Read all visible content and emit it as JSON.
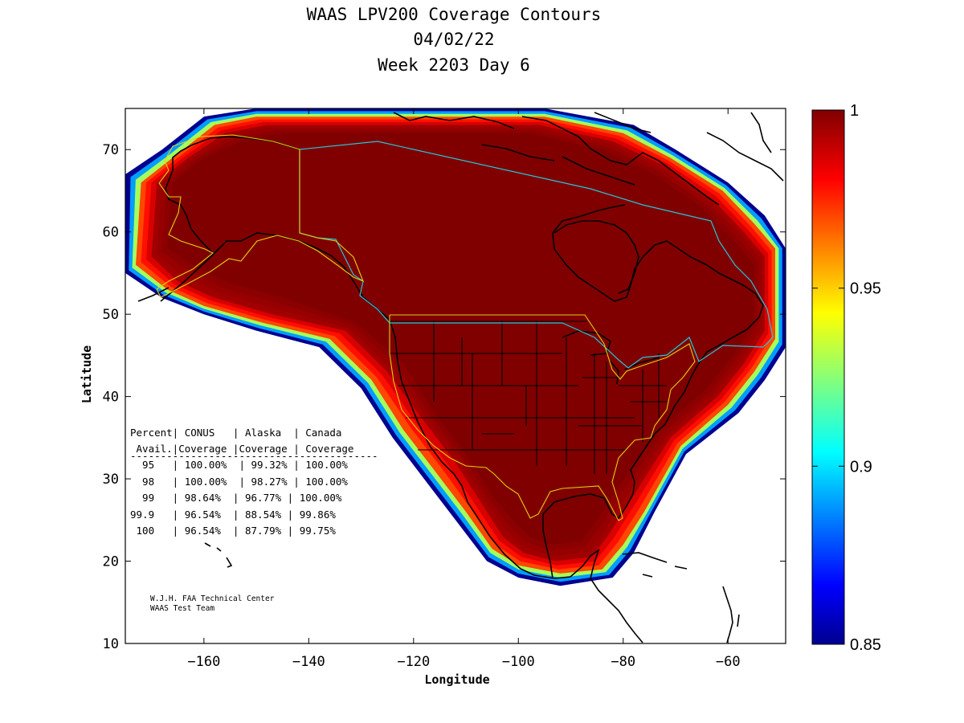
{
  "title": {
    "line1": "WAAS LPV200 Coverage Contours",
    "line2": "04/02/22",
    "line3": "Week 2203 Day 6"
  },
  "axes": {
    "xlabel": "Longitude",
    "ylabel": "Latitude",
    "xlim": [
      -175,
      -49
    ],
    "ylim": [
      10,
      75
    ],
    "xticks": [
      -160,
      -140,
      -120,
      -100,
      -80,
      -60
    ],
    "yticks": [
      10,
      20,
      30,
      40,
      50,
      60,
      70
    ]
  },
  "colorbar": {
    "min": 0.85,
    "max": 1,
    "ticks": [
      "1",
      "0.95",
      "0.9",
      "0.85"
    ],
    "colormap": "jet",
    "colors": [
      "#00008f",
      "#0000ff",
      "#00ffff",
      "#ffff00",
      "#ff0000",
      "#800000"
    ]
  },
  "stats_table": {
    "header1": "Percent| CONUS   | Alaska  | Canada",
    "header2": " Avail.|Coverage |Coverage | Coverage",
    "rule": "-----------------------------------------",
    "rows": [
      "  95   | 100.00%  | 99.32% | 100.00%",
      "  98   | 100.00%  | 98.27% | 100.00%",
      "  99   | 98.64%  | 96.77% | 100.00%",
      "99.9   | 96.54%  | 88.54% | 99.86%",
      " 100   | 96.54%  | 87.79% | 99.75%"
    ]
  },
  "credit": {
    "line1": "W.J.H. FAA Technical Center",
    "line2": "WAAS Test Team"
  },
  "chart_data": {
    "type": "heatmap",
    "x": "longitude (deg)",
    "y": "latitude (deg)",
    "value": "LPV200 availability",
    "value_range": [
      0.85,
      1
    ],
    "coverage_rings": [
      {
        "level": 0.85,
        "ring": [
          [
            -175,
            55
          ],
          [
            -175,
            67
          ],
          [
            -168,
            70
          ],
          [
            -160,
            74
          ],
          [
            -150,
            75
          ],
          [
            -95,
            75
          ],
          [
            -78,
            73
          ],
          [
            -70,
            70
          ],
          [
            -60,
            66
          ],
          [
            -53,
            62
          ],
          [
            -49,
            58
          ],
          [
            -49,
            46
          ],
          [
            -53,
            42
          ],
          [
            -58,
            38
          ],
          [
            -68,
            33
          ],
          [
            -74,
            26
          ],
          [
            -78,
            21
          ],
          [
            -82,
            18
          ],
          [
            -92,
            17
          ],
          [
            -100,
            18
          ],
          [
            -106,
            20
          ],
          [
            -112,
            25
          ],
          [
            -118,
            30
          ],
          [
            -124,
            35
          ],
          [
            -130,
            41
          ],
          [
            -138,
            46
          ],
          [
            -150,
            48
          ],
          [
            -160,
            50
          ],
          [
            -168,
            52
          ],
          [
            -175,
            55
          ]
        ]
      },
      {
        "level": 0.97,
        "ring": [
          [
            -173,
            56
          ],
          [
            -172,
            66
          ],
          [
            -166,
            69
          ],
          [
            -158,
            73
          ],
          [
            -150,
            74
          ],
          [
            -95,
            74
          ],
          [
            -80,
            72
          ],
          [
            -71,
            69
          ],
          [
            -61,
            65
          ],
          [
            -55,
            61
          ],
          [
            -51,
            58
          ],
          [
            -51,
            47
          ],
          [
            -55,
            43
          ],
          [
            -60,
            39
          ],
          [
            -69,
            34
          ],
          [
            -76,
            26
          ],
          [
            -80,
            22
          ],
          [
            -84,
            19
          ],
          [
            -92,
            18.5
          ],
          [
            -100,
            19.5
          ],
          [
            -105,
            21.5
          ],
          [
            -110,
            26
          ],
          [
            -116,
            31
          ],
          [
            -122,
            36
          ],
          [
            -128,
            42
          ],
          [
            -136,
            47
          ],
          [
            -149,
            49
          ],
          [
            -160,
            51
          ],
          [
            -167,
            53
          ],
          [
            -173,
            56
          ]
        ]
      },
      {
        "level": 0.995,
        "ring": [
          [
            -170,
            57
          ],
          [
            -169,
            66
          ],
          [
            -163,
            69
          ],
          [
            -156,
            72
          ],
          [
            -148,
            73
          ],
          [
            -96,
            73
          ],
          [
            -82,
            71
          ],
          [
            -72,
            68
          ],
          [
            -63,
            64
          ],
          [
            -57,
            60
          ],
          [
            -53,
            57
          ],
          [
            -53,
            48
          ],
          [
            -57,
            44
          ],
          [
            -62,
            40
          ],
          [
            -71,
            35
          ],
          [
            -79,
            27
          ],
          [
            -83,
            23
          ],
          [
            -86,
            20.5
          ],
          [
            -93,
            20
          ],
          [
            -99,
            21
          ],
          [
            -103,
            23
          ],
          [
            -107,
            27
          ],
          [
            -112,
            32
          ],
          [
            -118,
            37
          ],
          [
            -125,
            43
          ],
          [
            -133,
            48
          ],
          [
            -147,
            50
          ],
          [
            -158,
            52
          ],
          [
            -165,
            54
          ],
          [
            -170,
            57
          ]
        ]
      },
      {
        "level": 1,
        "ring": [
          [
            -167,
            58
          ],
          [
            -166,
            66
          ],
          [
            -160,
            69
          ],
          [
            -153,
            71
          ],
          [
            -146,
            72
          ],
          [
            -98,
            72
          ],
          [
            -84,
            70
          ],
          [
            -74,
            67
          ],
          [
            -65,
            63
          ],
          [
            -59,
            59
          ],
          [
            -55,
            56
          ],
          [
            -55,
            49
          ],
          [
            -59,
            45
          ],
          [
            -64,
            41
          ],
          [
            -73,
            36
          ],
          [
            -81,
            29
          ],
          [
            -85,
            25
          ],
          [
            -88,
            22.5
          ],
          [
            -94,
            22
          ],
          [
            -98,
            23
          ],
          [
            -101,
            25
          ],
          [
            -105,
            28
          ],
          [
            -110,
            33
          ],
          [
            -116,
            38
          ],
          [
            -122,
            44
          ],
          [
            -131,
            49
          ],
          [
            -145,
            52
          ],
          [
            -156,
            54
          ],
          [
            -162,
            56
          ],
          [
            -167,
            58
          ]
        ]
      }
    ]
  }
}
